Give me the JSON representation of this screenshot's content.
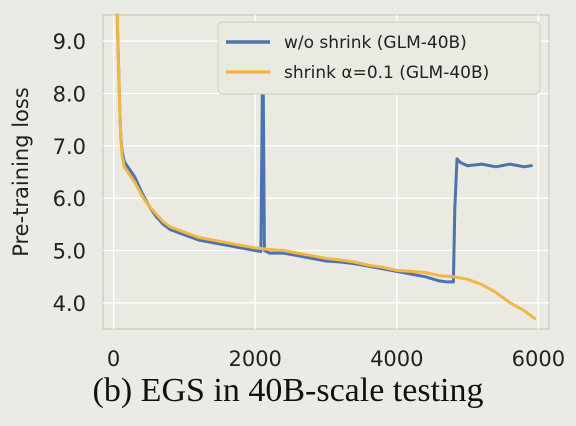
{
  "caption": "(b) EGS in 40B-scale testing",
  "chart_data": {
    "type": "line",
    "title": "",
    "xlabel": "",
    "ylabel": "Pre-training loss",
    "xlim": [
      -150,
      6150
    ],
    "ylim": [
      3.5,
      9.5
    ],
    "xticks": [
      0,
      2000,
      4000,
      6000
    ],
    "xtick_labels": [
      "0",
      "2000",
      "4000",
      "6000"
    ],
    "yticks": [
      4.0,
      5.0,
      6.0,
      7.0,
      8.0,
      9.0
    ],
    "ytick_labels": [
      "4.0",
      "5.0",
      "6.0",
      "7.0",
      "8.0",
      "9.0"
    ],
    "grid": true,
    "legend_position": "top-right",
    "series": [
      {
        "name": "w/o shrink (GLM-40B)",
        "color": "#4c72b0",
        "x": [
          50,
          80,
          100,
          120,
          150,
          200,
          300,
          400,
          500,
          600,
          700,
          800,
          1000,
          1200,
          1400,
          1600,
          1800,
          2000,
          2080,
          2100,
          2110,
          2120,
          2130,
          2200,
          2400,
          2600,
          2800,
          3000,
          3200,
          3400,
          3600,
          3800,
          4000,
          4200,
          4400,
          4600,
          4700,
          4750,
          4800,
          4820,
          4850,
          4900,
          5000,
          5200,
          5400,
          5600,
          5800,
          5900
        ],
        "y": [
          9.5,
          8.0,
          7.2,
          6.9,
          6.7,
          6.6,
          6.4,
          6.1,
          5.85,
          5.65,
          5.5,
          5.4,
          5.3,
          5.2,
          5.15,
          5.1,
          5.05,
          5.0,
          4.98,
          8.0,
          8.6,
          7.0,
          5.0,
          4.95,
          4.95,
          4.9,
          4.85,
          4.8,
          4.78,
          4.75,
          4.7,
          4.65,
          4.6,
          4.55,
          4.5,
          4.42,
          4.4,
          4.4,
          4.4,
          5.8,
          6.75,
          6.68,
          6.62,
          6.65,
          6.6,
          6.65,
          6.6,
          6.62
        ]
      },
      {
        "name": "shrink α=0.1 (GLM-40B)",
        "color": "#f2b742",
        "x": [
          50,
          80,
          100,
          120,
          150,
          200,
          300,
          400,
          500,
          600,
          700,
          800,
          1000,
          1200,
          1400,
          1600,
          1800,
          2000,
          2200,
          2400,
          2600,
          2800,
          3000,
          3200,
          3400,
          3600,
          3800,
          4000,
          4200,
          4400,
          4600,
          4800,
          5000,
          5200,
          5400,
          5600,
          5800,
          5900,
          5950
        ],
        "y": [
          9.5,
          8.0,
          7.2,
          6.8,
          6.6,
          6.5,
          6.3,
          6.05,
          5.85,
          5.7,
          5.55,
          5.45,
          5.35,
          5.25,
          5.2,
          5.15,
          5.1,
          5.05,
          5.02,
          5.0,
          4.95,
          4.9,
          4.85,
          4.82,
          4.78,
          4.72,
          4.68,
          4.62,
          4.6,
          4.58,
          4.52,
          4.5,
          4.45,
          4.35,
          4.2,
          4.0,
          3.85,
          3.75,
          3.7
        ]
      }
    ]
  }
}
